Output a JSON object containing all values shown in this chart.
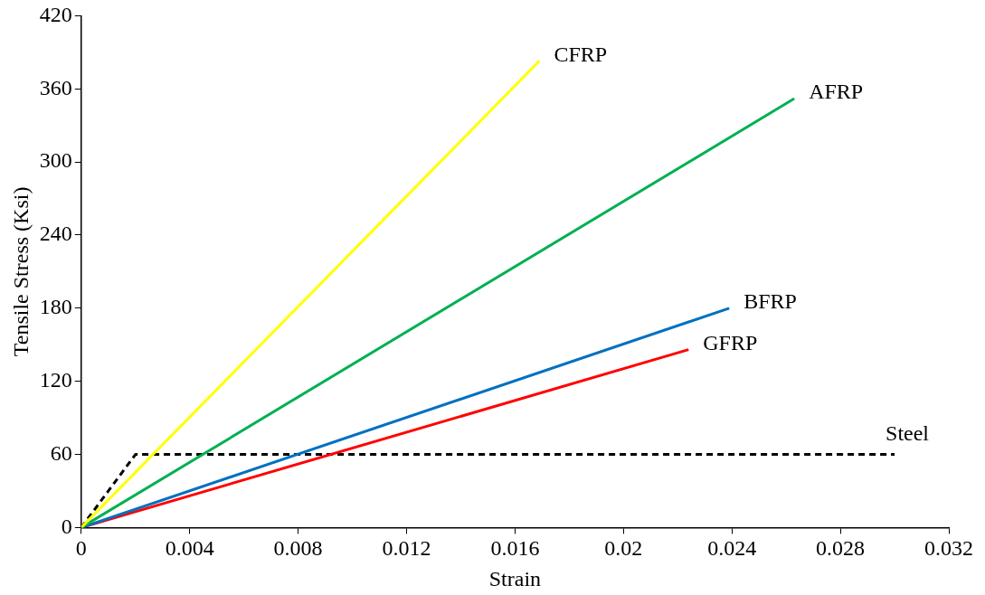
{
  "chart_data": {
    "type": "line",
    "xlabel": "Strain",
    "ylabel": "Tensile Stress (Ksi)",
    "xlim": [
      0,
      0.032
    ],
    "xticks": [
      0,
      0.004,
      0.008,
      0.012,
      0.016,
      0.02,
      0.024,
      0.028,
      0.032
    ],
    "ylim": [
      0,
      420
    ],
    "yticks": [
      0,
      60,
      120,
      180,
      240,
      300,
      360,
      420
    ],
    "grid": false,
    "legend": false,
    "marker": "none",
    "series": [
      {
        "name": "CFRP",
        "color": "#ffff00",
        "x": [
          0,
          0.0169
        ],
        "values": [
          0,
          383
        ]
      },
      {
        "name": "AFRP",
        "color": "#00b050",
        "x": [
          0,
          0.0263
        ],
        "values": [
          0,
          352
        ]
      },
      {
        "name": "BFRP",
        "color": "#0070c0",
        "x": [
          0,
          0.0239
        ],
        "values": [
          0,
          180
        ]
      },
      {
        "name": "GFRP",
        "color": "#ff0000",
        "x": [
          0,
          0.0224
        ],
        "values": [
          0,
          146
        ]
      },
      {
        "name": "Steel",
        "color": "#000000",
        "line_style": "dashed",
        "x": [
          0,
          0.002,
          0.03
        ],
        "values": [
          0,
          60,
          60
        ]
      }
    ]
  }
}
